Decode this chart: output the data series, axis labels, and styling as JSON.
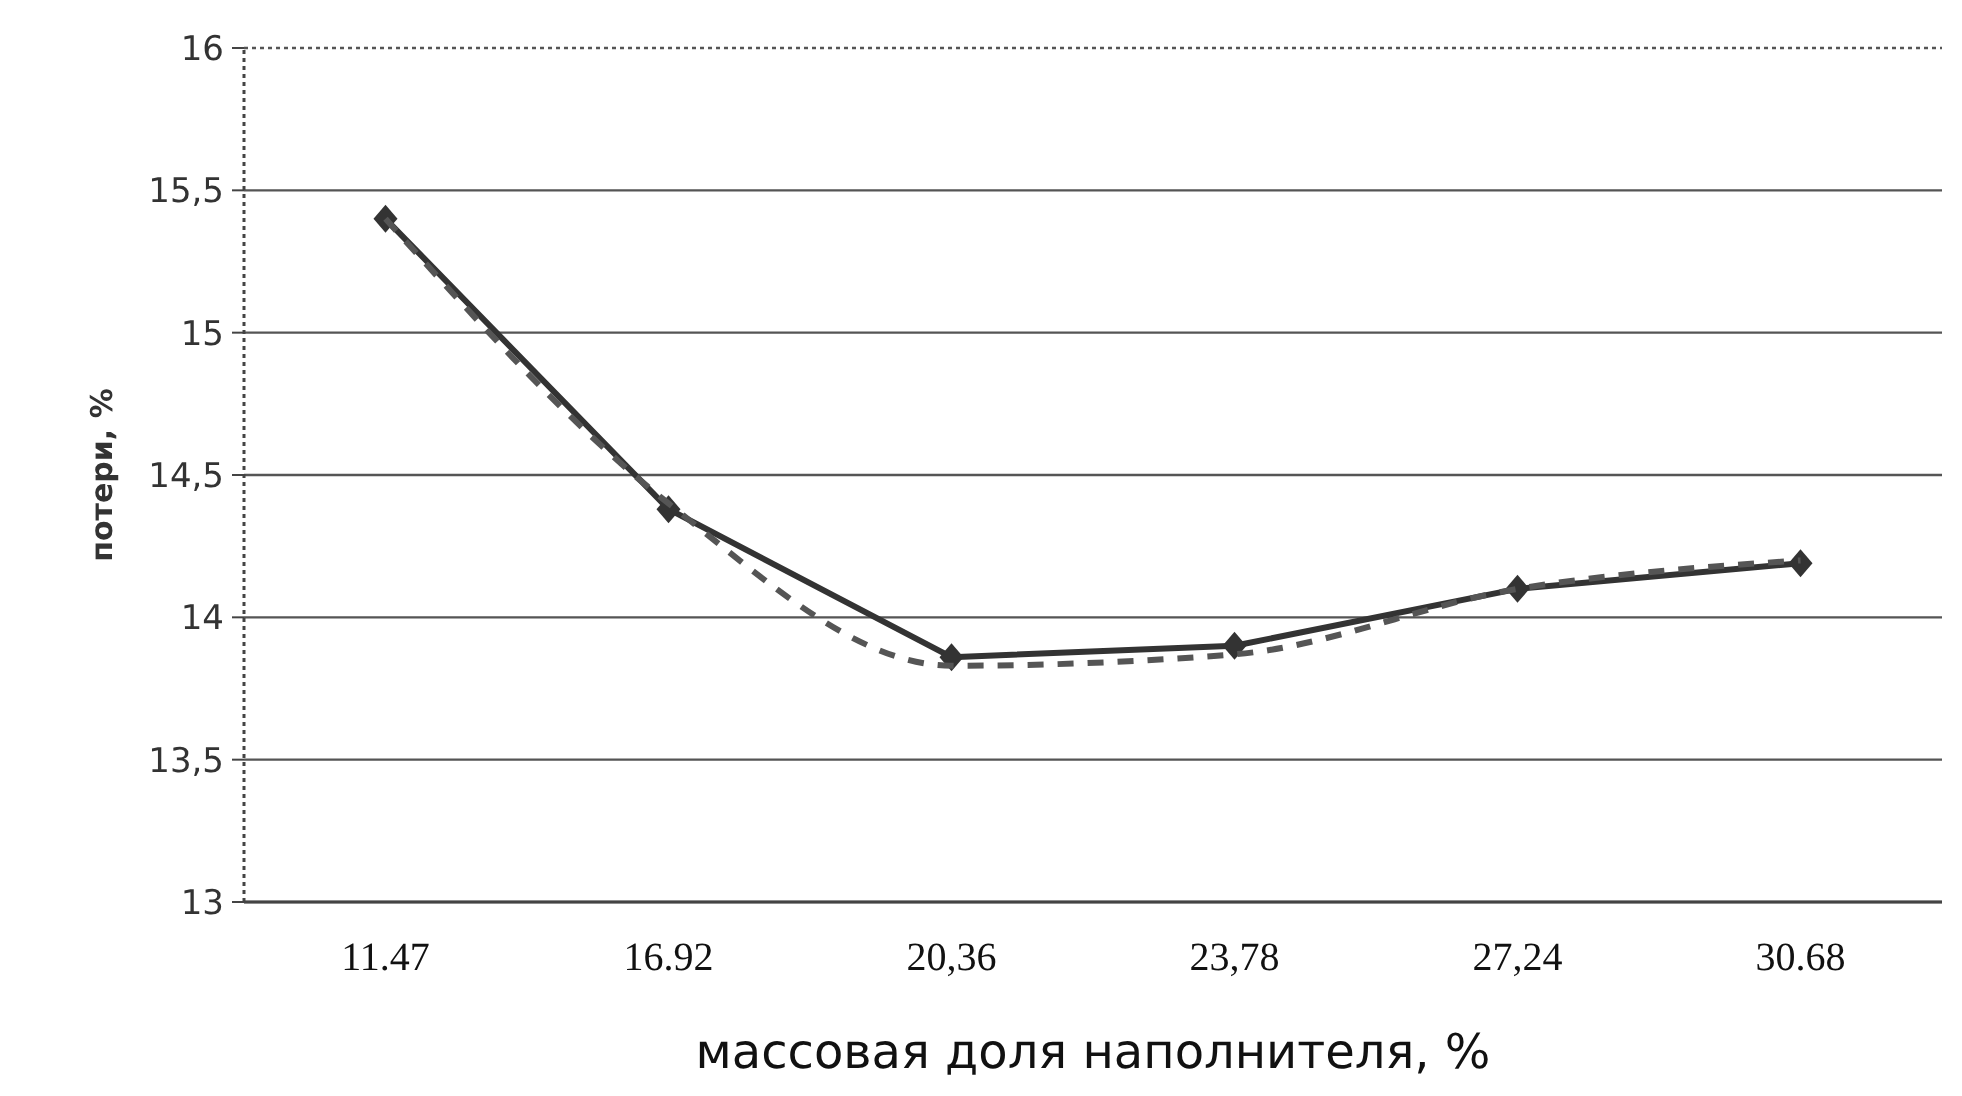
{
  "chart_data": {
    "type": "line",
    "xlabel": "массовая доля наполнителя, %",
    "ylabel": "потери, %",
    "categories": [
      "11.47",
      "16.92",
      "20,36",
      "23,78",
      "27,24",
      "30.68"
    ],
    "series": [
      {
        "color": "#333333",
        "values": [
          15.4,
          14.38,
          13.86,
          13.9,
          14.1,
          14.19
        ],
        "marker": "diamond",
        "line_style": "solid"
      },
      {
        "color": "#555555",
        "values": [
          15.4,
          14.4,
          13.83,
          13.87,
          14.1,
          14.2
        ],
        "marker": "none",
        "line_style": "dashed"
      }
    ],
    "ylim": [
      13,
      16
    ],
    "yticks": [
      {
        "value": 13,
        "label": "13"
      },
      {
        "value": 13.5,
        "label": "13,5"
      },
      {
        "value": 14,
        "label": "14"
      },
      {
        "value": 14.5,
        "label": "14,5"
      },
      {
        "value": 15,
        "label": "15"
      },
      {
        "value": 15.5,
        "label": "15,5"
      },
      {
        "value": 16,
        "label": "16"
      }
    ],
    "grid": "y"
  }
}
